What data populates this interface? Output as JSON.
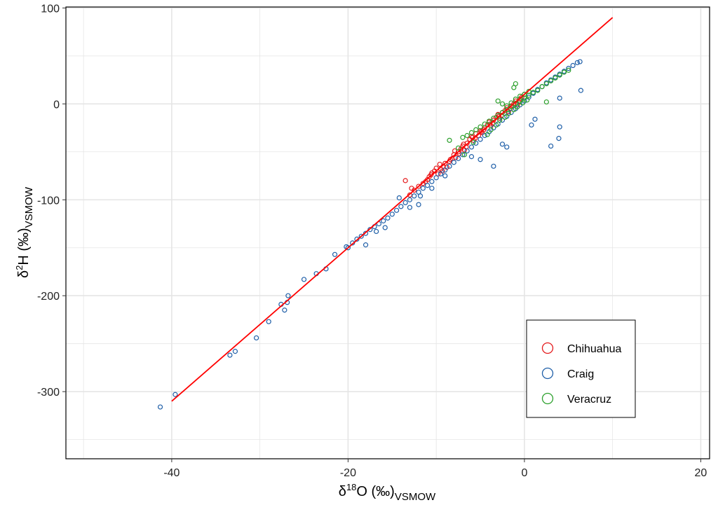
{
  "chart_data": {
    "type": "scatter",
    "title": "",
    "xlabel": {
      "base": "δ",
      "sup": "18",
      "main": "O (‰)",
      "sub": "VSMOW"
    },
    "ylabel": {
      "base": "δ",
      "sup": "2",
      "main": "H (‰)",
      "sub": "VSMOW"
    },
    "xlim": [
      -52,
      21
    ],
    "ylim": [
      -370,
      101
    ],
    "x_ticks": [
      -40,
      -20,
      0,
      20
    ],
    "y_ticks": [
      100,
      0,
      -100,
      -200,
      -300
    ],
    "x_tick_labels": [
      "-40",
      "-20",
      "0",
      "20"
    ],
    "y_tick_labels": [
      "100",
      "0",
      "-100",
      "-200",
      "-300"
    ],
    "grid": true,
    "legend_position": "bottom-right",
    "fit_line": {
      "color": "#ff0000",
      "x": [
        -40,
        10
      ],
      "y": [
        -310,
        90
      ]
    },
    "series": [
      {
        "name": "Chihuahua",
        "color": "#e41a1c",
        "points": [
          [
            -13.5,
            -80
          ],
          [
            -13,
            -95
          ],
          [
            -12.5,
            -90
          ],
          [
            -12,
            -86
          ],
          [
            -11.5,
            -83
          ],
          [
            -11,
            -79
          ],
          [
            -10.8,
            -76
          ],
          [
            -10.5,
            -72
          ],
          [
            -10.2,
            -70
          ],
          [
            -10,
            -67
          ],
          [
            -9.8,
            -73
          ],
          [
            -9.5,
            -68
          ],
          [
            -9.2,
            -65
          ],
          [
            -9,
            -62
          ],
          [
            -8.8,
            -66
          ],
          [
            -8.5,
            -60
          ],
          [
            -8.2,
            -57
          ],
          [
            -8,
            -53
          ],
          [
            -7.8,
            -56
          ],
          [
            -7.5,
            -50
          ],
          [
            -7.2,
            -47
          ],
          [
            -7,
            -44
          ],
          [
            -6.8,
            -48
          ],
          [
            -6.5,
            -41
          ],
          [
            -6.2,
            -37
          ],
          [
            -6,
            -34
          ],
          [
            -5.8,
            -38
          ],
          [
            -5.5,
            -31
          ],
          [
            -5.2,
            -33
          ],
          [
            -5,
            -28
          ],
          [
            -4.8,
            -30
          ],
          [
            -4.5,
            -25
          ],
          [
            -4.2,
            -22
          ],
          [
            -4,
            -19
          ],
          [
            -3.8,
            -23
          ],
          [
            -3.5,
            -17
          ],
          [
            -3.2,
            -14
          ],
          [
            -3,
            -11
          ],
          [
            -2.8,
            -15
          ],
          [
            -2.5,
            -9
          ],
          [
            -2.2,
            -7
          ],
          [
            -2,
            -4
          ],
          [
            -1.8,
            -8
          ],
          [
            -1.5,
            -2
          ],
          [
            -1.2,
            0
          ],
          [
            -1,
            3
          ],
          [
            -0.8,
            -1
          ],
          [
            -0.5,
            5
          ],
          [
            -0.3,
            7
          ],
          [
            0,
            10
          ],
          [
            -12.8,
            -88
          ],
          [
            -11.2,
            -81
          ],
          [
            -9.6,
            -63
          ],
          [
            -8.4,
            -58
          ],
          [
            -7.4,
            -52
          ],
          [
            -6.6,
            -45
          ],
          [
            -5.6,
            -36
          ],
          [
            -4.6,
            -27
          ],
          [
            -3.6,
            -20
          ],
          [
            -2.6,
            -12
          ],
          [
            -1.6,
            -5
          ],
          [
            -0.6,
            2
          ],
          [
            -10.6,
            -74
          ],
          [
            -9.3,
            -70
          ],
          [
            -7.9,
            -49
          ],
          [
            -6.9,
            -42
          ],
          [
            -5.9,
            -35
          ],
          [
            -4.9,
            -29
          ],
          [
            -3.9,
            -21
          ],
          [
            -2.9,
            -13
          ]
        ]
      },
      {
        "name": "Craig",
        "color": "#1f5fa8",
        "points": [
          [
            -41.3,
            -316
          ],
          [
            -39.6,
            -303
          ],
          [
            -33.4,
            -262
          ],
          [
            -32.8,
            -258
          ],
          [
            -30.4,
            -244
          ],
          [
            -29,
            -227
          ],
          [
            -27.6,
            -209
          ],
          [
            -27.2,
            -215
          ],
          [
            -26.9,
            -207
          ],
          [
            -26.8,
            -200
          ],
          [
            -25,
            -183
          ],
          [
            -23.6,
            -177
          ],
          [
            -22.5,
            -172
          ],
          [
            -21.5,
            -157
          ],
          [
            -20,
            -150
          ],
          [
            -19.5,
            -145
          ],
          [
            -19,
            -141
          ],
          [
            -18.5,
            -138
          ],
          [
            -18,
            -135
          ],
          [
            -17.5,
            -131
          ],
          [
            -17,
            -128
          ],
          [
            -16.5,
            -125
          ],
          [
            -16,
            -122
          ],
          [
            -15.5,
            -119
          ],
          [
            -15,
            -115
          ],
          [
            -14.5,
            -111
          ],
          [
            -14,
            -107
          ],
          [
            -13.5,
            -103
          ],
          [
            -13,
            -100
          ],
          [
            -12.5,
            -96
          ],
          [
            -12,
            -92
          ],
          [
            -11.5,
            -88
          ],
          [
            -11,
            -85
          ],
          [
            -10.5,
            -81
          ],
          [
            -10,
            -77
          ],
          [
            -9.5,
            -73
          ],
          [
            -9,
            -69
          ],
          [
            -8.5,
            -65
          ],
          [
            -8,
            -61
          ],
          [
            -7.5,
            -57
          ],
          [
            -7,
            -53
          ],
          [
            -6.5,
            -49
          ],
          [
            -6,
            -45
          ],
          [
            -5.5,
            -41
          ],
          [
            -5,
            -37
          ],
          [
            -4.5,
            -33
          ],
          [
            -4,
            -29
          ],
          [
            -3.5,
            -25
          ],
          [
            -3,
            -21
          ],
          [
            -2.5,
            -17
          ],
          [
            -2,
            -13
          ],
          [
            -1.5,
            -9
          ],
          [
            -1,
            -5
          ],
          [
            -0.5,
            -1
          ],
          [
            0,
            3
          ],
          [
            0.5,
            7
          ],
          [
            1,
            11
          ],
          [
            1.5,
            15
          ],
          [
            2,
            18
          ],
          [
            2.5,
            22
          ],
          [
            3,
            25
          ],
          [
            3.5,
            28
          ],
          [
            4,
            31
          ],
          [
            4.5,
            34
          ],
          [
            5,
            37
          ],
          [
            5.5,
            40
          ],
          [
            6,
            43
          ],
          [
            6.3,
            44
          ],
          [
            6.4,
            14
          ],
          [
            4,
            6
          ],
          [
            4,
            -24
          ],
          [
            3.9,
            -36
          ],
          [
            3,
            -44
          ],
          [
            0.8,
            -22
          ],
          [
            1.2,
            -16
          ],
          [
            -2,
            -45
          ],
          [
            -2.5,
            -42
          ],
          [
            -3.5,
            -65
          ],
          [
            -5,
            -58
          ],
          [
            -6,
            -55
          ],
          [
            -18,
            -147
          ],
          [
            -15.8,
            -129
          ],
          [
            -13,
            -108
          ],
          [
            -12,
            -105
          ],
          [
            -10.5,
            -88
          ],
          [
            -9,
            -75
          ],
          [
            -20.2,
            -149
          ],
          [
            -16.8,
            -133
          ],
          [
            -14.2,
            -98
          ],
          [
            -11.8,
            -96
          ]
        ]
      },
      {
        "name": "Veracruz",
        "color": "#2ca02c",
        "points": [
          [
            -8.5,
            -38
          ],
          [
            -7,
            -35
          ],
          [
            -6.5,
            -33
          ],
          [
            -6,
            -30
          ],
          [
            -5.5,
            -27
          ],
          [
            -5,
            -24
          ],
          [
            -4.5,
            -21
          ],
          [
            -4,
            -18
          ],
          [
            -3.5,
            -15
          ],
          [
            -3,
            -12
          ],
          [
            -2.5,
            -9
          ],
          [
            -2,
            -6
          ],
          [
            -1.5,
            -3
          ],
          [
            -1,
            0
          ],
          [
            -0.5,
            3
          ],
          [
            0,
            6
          ],
          [
            0.5,
            9
          ],
          [
            1,
            12
          ],
          [
            1.5,
            14
          ],
          [
            2,
            18
          ],
          [
            2.5,
            21
          ],
          [
            3,
            24
          ],
          [
            3.5,
            27
          ],
          [
            4,
            30
          ],
          [
            4.5,
            33
          ],
          [
            5,
            35
          ],
          [
            2.5,
            2
          ],
          [
            -1,
            21
          ],
          [
            -1.2,
            17
          ],
          [
            -3,
            3
          ],
          [
            -2.5,
            0
          ],
          [
            -2,
            -2
          ],
          [
            -1.5,
            1
          ],
          [
            -1,
            5
          ],
          [
            -0.5,
            8
          ],
          [
            0,
            10
          ],
          [
            0.5,
            13
          ],
          [
            -6.8,
            -53
          ],
          [
            -7.5,
            -46
          ],
          [
            -5.8,
            -40
          ],
          [
            -4.2,
            -32
          ],
          [
            -3.8,
            -27
          ],
          [
            -3.2,
            -22
          ],
          [
            -2.8,
            -17
          ],
          [
            -2.2,
            -14
          ],
          [
            -1.8,
            -10
          ],
          [
            -1.2,
            -6
          ],
          [
            -0.8,
            -3
          ],
          [
            -0.2,
            1
          ],
          [
            0.3,
            4
          ]
        ]
      }
    ]
  }
}
